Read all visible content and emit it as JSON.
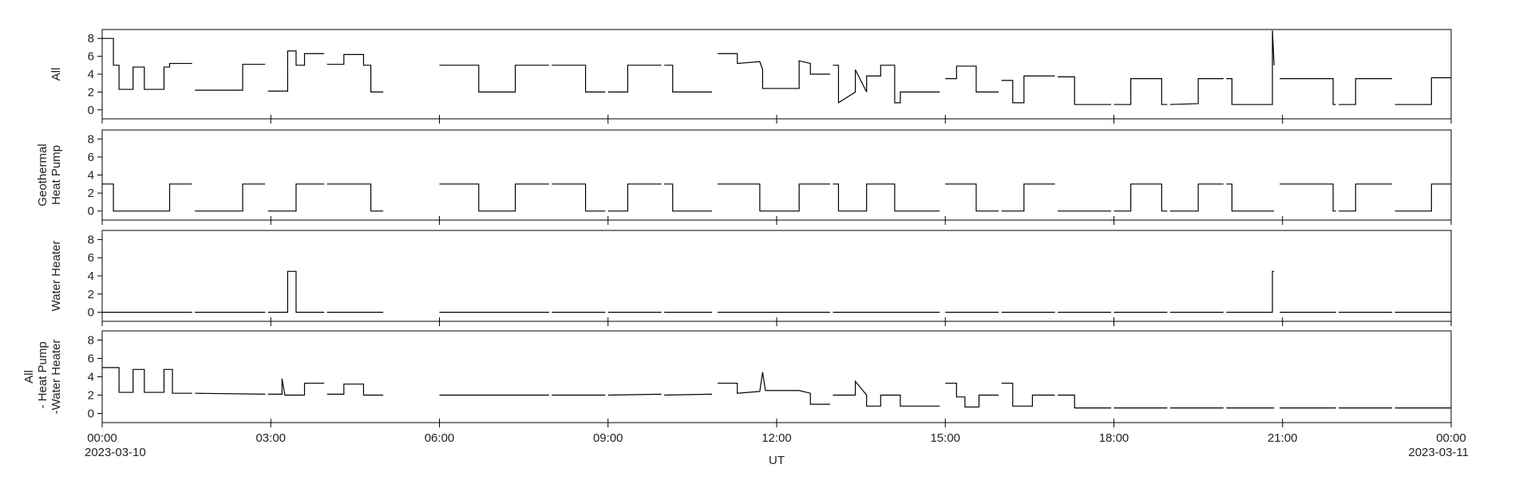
{
  "chart_data": [
    {
      "type": "line",
      "ylabel": [
        "All"
      ],
      "color": "#000000",
      "ylim": [
        -1,
        9
      ],
      "yticks": [
        0,
        2,
        4,
        6,
        8
      ],
      "xlim": [
        0,
        24
      ],
      "xticks": [
        0,
        3,
        6,
        9,
        12,
        15,
        18,
        21,
        24
      ],
      "x": [
        0,
        0.2,
        0.2,
        0.3,
        0.3,
        0.55,
        0.55,
        0.75,
        0.75,
        1.1,
        1.1,
        1.2,
        1.2,
        1.6,
        1.62,
        1.65,
        2.5,
        2.5,
        2.9,
        2.92,
        2.95,
        3.3,
        3.3,
        3.45,
        3.45,
        3.6,
        3.6,
        3.95,
        3.97,
        4.0,
        4.3,
        4.3,
        4.65,
        4.65,
        4.78,
        4.78,
        5.0,
        5.5,
        6.0,
        6.7,
        6.7,
        7.35,
        7.35,
        7.95,
        7.97,
        8.0,
        8.6,
        8.6,
        8.95,
        8.97,
        9.0,
        9.35,
        9.35,
        9.95,
        9.97,
        10.0,
        10.15,
        10.15,
        10.85,
        10.9,
        10.95,
        11.3,
        11.3,
        11.7,
        11.75,
        11.75,
        12.4,
        12.4,
        12.6,
        12.6,
        12.95,
        12.97,
        13.0,
        13.1,
        13.1,
        13.4,
        13.4,
        13.6,
        13.6,
        13.85,
        13.85,
        14.1,
        14.1,
        14.2,
        14.2,
        14.9,
        14.95,
        15.0,
        15.2,
        15.2,
        15.55,
        15.55,
        15.95,
        15.97,
        16.0,
        16.2,
        16.2,
        16.4,
        16.4,
        16.95,
        16.97,
        17.0,
        17.3,
        17.3,
        17.95,
        17.97,
        18.0,
        18.3,
        18.3,
        18.85,
        18.85,
        18.95,
        18.97,
        19.0,
        19.5,
        19.5,
        19.95,
        19.97,
        20.0,
        20.1,
        20.1,
        20.82,
        20.82,
        20.85,
        20.9,
        20.95,
        21.9,
        21.9,
        21.95,
        21.97,
        22.0,
        22.3,
        22.3,
        22.95,
        22.97,
        23.0,
        23.65,
        23.65,
        24.0
      ],
      "values": [
        8,
        8,
        5,
        5,
        2.3,
        2.3,
        4.8,
        4.8,
        2.3,
        2.3,
        4.8,
        4.8,
        5.2,
        5.2,
        null,
        2.2,
        2.2,
        5.1,
        5.1,
        null,
        2.1,
        2.1,
        6.6,
        6.6,
        5.0,
        5.0,
        6.3,
        6.3,
        null,
        5.1,
        5.1,
        6.2,
        6.2,
        5.0,
        5.0,
        2.0,
        2.0,
        null,
        5.0,
        5.0,
        2.0,
        2.0,
        5.0,
        5.0,
        null,
        5.0,
        5.0,
        2.0,
        2.0,
        null,
        2.0,
        2.0,
        5.0,
        5.0,
        null,
        5.0,
        5.0,
        2.0,
        2.0,
        null,
        6.3,
        6.3,
        5.2,
        5.4,
        4.5,
        2.4,
        2.4,
        5.5,
        5.2,
        4.0,
        4.0,
        null,
        5.0,
        5.0,
        0.8,
        2.0,
        4.5,
        2.0,
        3.8,
        3.8,
        5.0,
        5.0,
        0.8,
        0.8,
        2.0,
        2.0,
        null,
        3.5,
        3.5,
        4.9,
        4.9,
        2.0,
        2.0,
        null,
        3.3,
        3.3,
        0.8,
        0.8,
        3.8,
        3.8,
        null,
        3.7,
        3.7,
        0.6,
        0.6,
        null,
        0.6,
        0.6,
        3.5,
        3.5,
        0.6,
        0.6,
        null,
        0.6,
        0.7,
        3.5,
        3.5,
        null,
        3.5,
        3.5,
        0.6,
        0.6,
        8.9,
        5,
        null,
        3.5,
        3.5,
        0.6,
        0.6,
        null,
        0.6,
        0.6,
        3.5,
        3.5,
        null,
        0.6,
        0.6,
        3.6,
        3.6
      ]
    },
    {
      "type": "line",
      "ylabel": [
        "Geothermal",
        "Heat Pump"
      ],
      "color": "#000000",
      "ylim": [
        -1,
        9
      ],
      "yticks": [
        0,
        2,
        4,
        6,
        8
      ],
      "xlim": [
        0,
        24
      ],
      "xticks": [
        0,
        3,
        6,
        9,
        12,
        15,
        18,
        21,
        24
      ],
      "x": [
        0,
        0.2,
        0.2,
        1.2,
        1.2,
        1.6,
        1.62,
        1.65,
        2.5,
        2.5,
        2.9,
        2.92,
        2.95,
        3.45,
        3.45,
        3.95,
        3.97,
        4.0,
        4.78,
        4.78,
        5.0,
        5.5,
        6.0,
        6.7,
        6.7,
        7.35,
        7.35,
        7.95,
        7.97,
        8.0,
        8.6,
        8.6,
        8.95,
        8.97,
        9.0,
        9.35,
        9.35,
        9.95,
        9.97,
        10.0,
        10.15,
        10.15,
        10.85,
        10.9,
        10.95,
        11.7,
        11.7,
        12.4,
        12.4,
        12.95,
        12.97,
        13.0,
        13.1,
        13.1,
        13.6,
        13.6,
        14.1,
        14.1,
        14.9,
        14.95,
        15.0,
        15.55,
        15.55,
        15.95,
        15.97,
        16.0,
        16.4,
        16.4,
        16.95,
        16.97,
        17.0,
        17.95,
        17.97,
        18.0,
        18.3,
        18.3,
        18.85,
        18.85,
        18.95,
        18.97,
        19.0,
        19.5,
        19.5,
        19.95,
        19.97,
        20.0,
        20.1,
        20.1,
        20.85,
        20.9,
        20.95,
        21.9,
        21.9,
        21.95,
        21.97,
        22.0,
        22.3,
        22.3,
        22.95,
        22.97,
        23.0,
        23.65,
        23.65,
        24.0
      ],
      "values": [
        3,
        3,
        0,
        0,
        3,
        3,
        null,
        0,
        0,
        3,
        3,
        null,
        0,
        0,
        3,
        3,
        null,
        3,
        3,
        0,
        0,
        null,
        3,
        3,
        0,
        0,
        3,
        3,
        null,
        3,
        3,
        0,
        0,
        null,
        0,
        0,
        3,
        3,
        null,
        3,
        3,
        0,
        0,
        null,
        3,
        3,
        0,
        0,
        3,
        3,
        null,
        3,
        3,
        0,
        0,
        3,
        3,
        0,
        0,
        null,
        3,
        3,
        0,
        0,
        null,
        0,
        0,
        3,
        3,
        null,
        0,
        0,
        null,
        0,
        0,
        3,
        3,
        0,
        0,
        null,
        0,
        0,
        3,
        3,
        null,
        3,
        3,
        0,
        0,
        null,
        3,
        3,
        0,
        0,
        null,
        0,
        0,
        3,
        3,
        null,
        0,
        0,
        3,
        3
      ]
    },
    {
      "type": "line",
      "ylabel": [
        "Water Heater"
      ],
      "color": "#000000",
      "ylim": [
        -1,
        9
      ],
      "yticks": [
        0,
        2,
        4,
        6,
        8
      ],
      "xlim": [
        0,
        24
      ],
      "xticks": [
        0,
        3,
        6,
        9,
        12,
        15,
        18,
        21,
        24
      ],
      "x": [
        0,
        1.6,
        1.62,
        1.65,
        2.9,
        2.92,
        2.95,
        3.3,
        3.3,
        3.45,
        3.45,
        3.95,
        3.97,
        4.0,
        5.0,
        5.5,
        6.0,
        7.95,
        7.97,
        8.0,
        8.95,
        8.97,
        9.0,
        9.95,
        9.97,
        10.0,
        10.85,
        10.9,
        10.95,
        12.95,
        12.97,
        13.0,
        14.9,
        14.95,
        15.0,
        15.95,
        15.97,
        16.0,
        16.95,
        16.97,
        17.0,
        17.95,
        17.97,
        18.0,
        18.95,
        18.97,
        19.0,
        19.95,
        19.97,
        20.0,
        20.82,
        20.82,
        20.85,
        20.9,
        20.95,
        21.95,
        21.97,
        22.0,
        22.95,
        22.97,
        23.0,
        24.0
      ],
      "values": [
        0,
        0,
        null,
        0,
        0,
        null,
        0,
        0,
        4.5,
        4.5,
        0,
        0,
        null,
        0,
        0,
        null,
        0,
        0,
        null,
        0,
        0,
        null,
        0,
        0,
        null,
        0,
        0,
        null,
        0,
        0,
        null,
        0,
        0,
        null,
        0,
        0,
        null,
        0,
        0,
        null,
        0,
        0,
        null,
        0,
        0,
        null,
        0,
        0,
        null,
        0,
        0,
        4.5,
        4.5,
        null,
        0,
        0,
        null,
        0,
        0,
        null,
        0,
        0
      ]
    },
    {
      "type": "line",
      "ylabel": [
        "All",
        " - Heat Pump",
        "-Water Heater"
      ],
      "color": "#000000",
      "ylim": [
        -1,
        9
      ],
      "yticks": [
        0,
        2,
        4,
        6,
        8
      ],
      "xlim": [
        0,
        24
      ],
      "xticks": [
        {
          "value": 0,
          "label": "00:00"
        },
        {
          "value": 3,
          "label": "03:00"
        },
        {
          "value": 6,
          "label": "06:00"
        },
        {
          "value": 9,
          "label": "09:00"
        },
        {
          "value": 12,
          "label": "12:00"
        },
        {
          "value": 15,
          "label": "15:00"
        },
        {
          "value": 18,
          "label": "18:00"
        },
        {
          "value": 21,
          "label": "21:00"
        },
        {
          "value": 24,
          "label": "00:00"
        }
      ],
      "xlabel": "UT",
      "start_date": "2023-03-10",
      "end_date": "2023-03-11",
      "x": [
        0,
        0.3,
        0.3,
        0.55,
        0.55,
        0.75,
        0.75,
        1.1,
        1.1,
        1.25,
        1.25,
        1.6,
        1.62,
        1.65,
        2.9,
        2.92,
        2.95,
        3.2,
        3.2,
        3.25,
        3.6,
        3.6,
        3.95,
        3.97,
        4.0,
        4.3,
        4.3,
        4.65,
        4.65,
        5.0,
        5.5,
        6.0,
        7.95,
        7.97,
        8.0,
        8.95,
        8.97,
        9.0,
        9.95,
        9.97,
        10.0,
        10.85,
        10.9,
        10.95,
        11.3,
        11.3,
        11.7,
        11.75,
        11.8,
        12.4,
        12.6,
        12.6,
        12.95,
        12.97,
        13.0,
        13.4,
        13.4,
        13.6,
        13.6,
        13.85,
        13.85,
        14.2,
        14.2,
        14.9,
        14.95,
        15.0,
        15.2,
        15.2,
        15.35,
        15.35,
        15.6,
        15.6,
        15.95,
        15.97,
        16.0,
        16.2,
        16.2,
        16.55,
        16.55,
        16.95,
        16.97,
        17.0,
        17.3,
        17.3,
        17.95,
        17.97,
        18.0,
        18.95,
        18.97,
        19.0,
        19.95,
        19.97,
        20.0,
        20.85,
        20.9,
        20.95,
        21.95,
        21.97,
        22.0,
        22.95,
        22.97,
        23.0,
        24.0
      ],
      "values": [
        5,
        5,
        2.3,
        2.3,
        4.8,
        4.8,
        2.3,
        2.3,
        4.8,
        4.8,
        2.2,
        2.2,
        null,
        2.2,
        2.1,
        null,
        2.1,
        2.1,
        3.8,
        2.0,
        2.0,
        3.3,
        3.3,
        null,
        2.1,
        2.1,
        3.2,
        3.2,
        2.0,
        2.0,
        null,
        2.0,
        2.0,
        null,
        2.0,
        2.0,
        null,
        2.0,
        2.1,
        null,
        2.0,
        2.1,
        null,
        3.3,
        3.3,
        2.2,
        2.4,
        4.5,
        2.5,
        2.5,
        2.2,
        1.0,
        1.0,
        null,
        2.0,
        2.0,
        3.5,
        2.0,
        0.8,
        0.8,
        2.0,
        2.0,
        0.8,
        0.8,
        null,
        3.3,
        3.3,
        1.8,
        1.8,
        0.7,
        0.7,
        2.0,
        2.0,
        null,
        3.3,
        3.3,
        0.8,
        0.8,
        2.0,
        2.0,
        null,
        2.0,
        2.0,
        0.6,
        0.6,
        null,
        0.6,
        0.6,
        null,
        0.6,
        0.6,
        null,
        0.6,
        0.6,
        null,
        0.6,
        0.6,
        null,
        0.6,
        0.6,
        null,
        0.6,
        0.6
      ]
    }
  ]
}
